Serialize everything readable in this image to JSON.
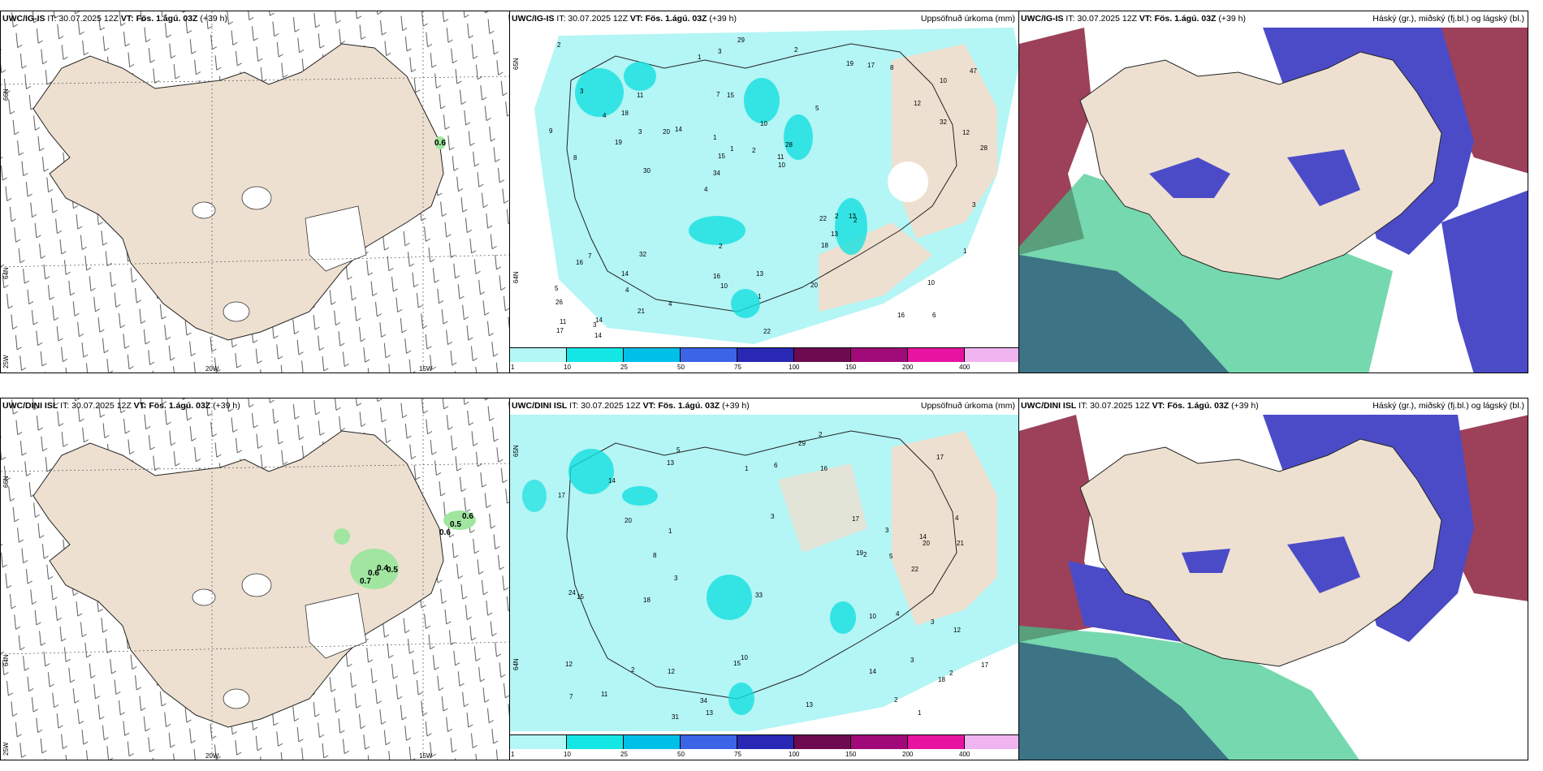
{
  "top_row": {
    "wind_panel": {
      "model": "UWC/IG-IS",
      "it_label": "IT: 30.07.2025 12Z",
      "vt_label": "VT: Fös. 1.ágú. 03Z",
      "lead": "(+39 h)",
      "values": [
        "0.6"
      ],
      "lat_labels": [
        "66N",
        "64N",
        "25W"
      ],
      "lon_labels": [
        "20W",
        "15W"
      ]
    },
    "precip_panel": {
      "model": "UWC/IG-IS",
      "it_label": "IT: 30.07.2025 12Z",
      "vt_label": "VT: Fös. 1.ágú. 03Z",
      "lead": "(+39 h)",
      "field_title": "Uppsöfnuð úrkoma (mm)",
      "lat_labels": [
        "65N",
        "64N"
      ],
      "numbers": [
        "6",
        "8",
        "10",
        "4",
        "5",
        "14",
        "7",
        "10",
        "7",
        "14",
        "26",
        "4",
        "15",
        "28",
        "2",
        "3",
        "3",
        "28",
        "22",
        "32",
        "34",
        "16",
        "15",
        "11",
        "19",
        "32",
        "16",
        "10",
        "13",
        "22",
        "20",
        "19",
        "18",
        "21",
        "12",
        "11",
        "11",
        "10",
        "10",
        "16",
        "12",
        "47",
        "13",
        "20",
        "14",
        "14",
        "17",
        "13",
        "8",
        "29",
        "30",
        "9",
        "18",
        "17",
        "3",
        "2",
        "1",
        "1",
        "1",
        "2",
        "4",
        "2",
        "3",
        "5",
        "2",
        "4",
        "3",
        "1",
        "1",
        "2"
      ]
    },
    "cloud_panel": {
      "model": "UWC/IG-IS",
      "it_label": "IT: 30.07.2025 12Z",
      "vt_label": "VT: Fös. 1.ágú. 03Z",
      "lead": "(+39 h)",
      "field_title": "Háský (gr.), miðský (fj.bl.) og lágský (bl.)"
    }
  },
  "bottom_row": {
    "wind_panel": {
      "model": "UWC/DINI ISL",
      "it_label": "IT: 30.07.2025 12Z",
      "vt_label": "VT: Fös. 1.ágú. 03Z",
      "lead": "(+39 h)",
      "values": [
        "0.6",
        "0.5",
        "0.6",
        "0.4",
        "0.5",
        "0.7",
        "0.6"
      ],
      "lat_labels": [
        "66N",
        "64N",
        "25W"
      ],
      "lon_labels": [
        "20W",
        "15W"
      ]
    },
    "precip_panel": {
      "model": "UWC/DINI ISL",
      "it_label": "IT: 30.07.2025 12Z",
      "vt_label": "VT: Fös. 1.ágú. 03Z",
      "lead": "(+39 h)",
      "field_title": "Uppsöfnuð úrkoma (mm)",
      "lat_labels": [
        "65N",
        "64N"
      ],
      "numbers": [
        "3",
        "4",
        "2",
        "3",
        "7",
        "5",
        "14",
        "12",
        "17",
        "20",
        "21",
        "17",
        "22",
        "13",
        "12",
        "14",
        "18",
        "13",
        "10",
        "20",
        "24",
        "15",
        "13",
        "19",
        "34",
        "15",
        "29",
        "16",
        "17",
        "17",
        "18",
        "14",
        "31",
        "33",
        "3",
        "2",
        "2",
        "1",
        "1",
        "3",
        "4",
        "5",
        "6",
        "8",
        "12",
        "10",
        "11",
        "2",
        "1",
        "3",
        "2"
      ]
    },
    "cloud_panel": {
      "model": "UWC/DINI ISL",
      "it_label": "IT: 30.07.2025 12Z",
      "vt_label": "VT: Fös. 1.ágú. 03Z",
      "lead": "(+39 h)",
      "field_title": "Háský (gr.), miðský (fj.bl.) og lágský (bl.)"
    }
  },
  "colorbar": {
    "ticks": [
      "1",
      "10",
      "25",
      "50",
      "75",
      "100",
      "150",
      "200",
      "400"
    ],
    "colors": [
      "#b4f7f7",
      "#14e6e6",
      "#00c0e8",
      "#3c64e6",
      "#2828b4",
      "#6e0a50",
      "#a00a78",
      "#e614a0",
      "#f0b4f0"
    ]
  },
  "colors": {
    "land": "#ede0d0",
    "precip_light": "#b4f5f5",
    "precip_mid": "#14e0e0",
    "low_cloud": "#4b4bc8",
    "high_cloud": "#8c1e3c",
    "mid_cloud": "#3cc88c",
    "green_wind": "#a0e6a0"
  }
}
